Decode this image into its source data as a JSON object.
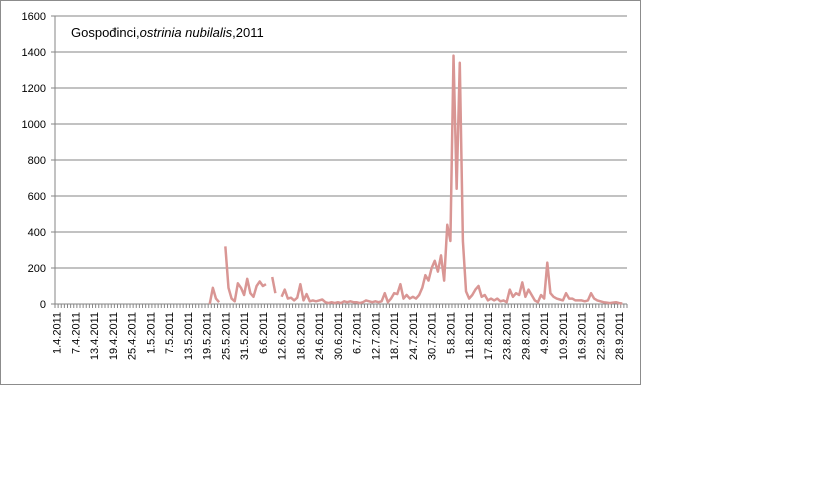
{
  "chart_data": {
    "type": "line",
    "title": "Gospođinci,",
    "title_italic": "ostrinia nubilalis",
    "title_suffix": ",2011",
    "xlabel": "",
    "ylabel": "",
    "ylim": [
      0,
      1600
    ],
    "yticks": [
      0,
      200,
      400,
      600,
      800,
      1000,
      1200,
      1400,
      1600
    ],
    "grid": true,
    "legend": "none",
    "line_color": "#d99694",
    "xtick_labels": [
      "1.4.2011",
      "7.4.2011",
      "13.4.2011",
      "19.4.2011",
      "25.4.2011",
      "1.5.2011",
      "7.5.2011",
      "13.5.2011",
      "19.5.2011",
      "25.5.2011",
      "31.5.2011",
      "6.6.2011",
      "12.6.2011",
      "18.6.2011",
      "24.6.2011",
      "30.6.2011",
      "6.7.2011",
      "12.7.2011",
      "18.7.2011",
      "24.7.2011",
      "30.7.2011",
      "5.8.2011",
      "11.8.2011",
      "17.8.2011",
      "23.8.2011",
      "29.8.2011",
      "4.9.2011",
      "10.9.2011",
      "16.9.2011",
      "22.9.2011",
      "28.9.2011"
    ],
    "series": [
      {
        "segments": [
          [
            [
              49,
              0
            ],
            [
              50,
              90
            ],
            [
              51,
              30
            ],
            [
              52,
              10
            ]
          ],
          [
            [
              54,
              320
            ],
            [
              55,
              90
            ],
            [
              56,
              30
            ],
            [
              57,
              15
            ],
            [
              58,
              115
            ],
            [
              59,
              90
            ],
            [
              60,
              50
            ],
            [
              61,
              140
            ],
            [
              62,
              60
            ],
            [
              63,
              40
            ],
            [
              64,
              100
            ],
            [
              65,
              125
            ],
            [
              66,
              100
            ],
            [
              67,
              110
            ]
          ],
          [
            [
              69,
              150
            ],
            [
              70,
              60
            ]
          ],
          [
            [
              72,
              40
            ],
            [
              73,
              80
            ],
            [
              74,
              30
            ],
            [
              75,
              35
            ],
            [
              76,
              20
            ],
            [
              77,
              35
            ],
            [
              78,
              110
            ],
            [
              79,
              20
            ],
            [
              80,
              55
            ],
            [
              81,
              15
            ],
            [
              82,
              20
            ],
            [
              83,
              15
            ],
            [
              84,
              20
            ],
            [
              85,
              25
            ],
            [
              86,
              10
            ],
            [
              87,
              5
            ],
            [
              88,
              10
            ],
            [
              89,
              5
            ],
            [
              90,
              10
            ],
            [
              91,
              5
            ],
            [
              92,
              15
            ],
            [
              93,
              10
            ],
            [
              94,
              15
            ],
            [
              95,
              10
            ],
            [
              96,
              10
            ],
            [
              97,
              5
            ],
            [
              98,
              10
            ],
            [
              99,
              20
            ],
            [
              100,
              15
            ],
            [
              101,
              10
            ],
            [
              102,
              15
            ],
            [
              103,
              10
            ],
            [
              104,
              15
            ],
            [
              105,
              60
            ],
            [
              106,
              10
            ],
            [
              107,
              30
            ],
            [
              108,
              60
            ],
            [
              109,
              55
            ],
            [
              110,
              110
            ],
            [
              111,
              30
            ],
            [
              112,
              50
            ],
            [
              113,
              30
            ],
            [
              114,
              40
            ],
            [
              115,
              30
            ],
            [
              116,
              50
            ],
            [
              117,
              90
            ],
            [
              118,
              160
            ],
            [
              119,
              130
            ],
            [
              120,
              200
            ],
            [
              121,
              240
            ],
            [
              122,
              180
            ],
            [
              123,
              270
            ],
            [
              124,
              130
            ],
            [
              125,
              440
            ],
            [
              126,
              350
            ],
            [
              127,
              1380
            ],
            [
              128,
              640
            ],
            [
              129,
              1340
            ],
            [
              130,
              350
            ],
            [
              131,
              70
            ],
            [
              132,
              30
            ],
            [
              133,
              50
            ],
            [
              134,
              80
            ],
            [
              135,
              100
            ],
            [
              136,
              40
            ],
            [
              137,
              50
            ],
            [
              138,
              20
            ],
            [
              139,
              30
            ],
            [
              140,
              20
            ],
            [
              141,
              30
            ],
            [
              142,
              15
            ],
            [
              143,
              20
            ],
            [
              144,
              10
            ],
            [
              145,
              80
            ],
            [
              146,
              40
            ],
            [
              147,
              60
            ],
            [
              148,
              50
            ],
            [
              149,
              120
            ],
            [
              150,
              40
            ],
            [
              151,
              80
            ],
            [
              152,
              50
            ],
            [
              153,
              20
            ],
            [
              154,
              10
            ],
            [
              155,
              50
            ],
            [
              156,
              30
            ],
            [
              157,
              230
            ],
            [
              158,
              60
            ],
            [
              159,
              40
            ],
            [
              160,
              30
            ],
            [
              161,
              25
            ],
            [
              162,
              20
            ],
            [
              163,
              60
            ],
            [
              164,
              30
            ],
            [
              165,
              30
            ],
            [
              166,
              20
            ],
            [
              167,
              20
            ],
            [
              168,
              20
            ],
            [
              169,
              15
            ],
            [
              170,
              20
            ],
            [
              171,
              60
            ],
            [
              172,
              30
            ],
            [
              173,
              20
            ],
            [
              174,
              15
            ],
            [
              175,
              10
            ],
            [
              176,
              8
            ],
            [
              177,
              5
            ],
            [
              178,
              8
            ],
            [
              179,
              10
            ],
            [
              180,
              5
            ],
            [
              181,
              3
            ]
          ]
        ]
      }
    ]
  }
}
